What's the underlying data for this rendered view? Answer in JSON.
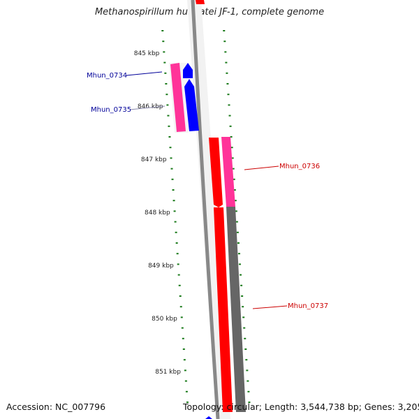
{
  "header": {
    "title": "Methanospirillum hungatei JF-1, complete genome"
  },
  "footer": {
    "accession": "Accession: NC_007796",
    "summary": "Topology: circular; Length: 3,544,738 bp; Genes: 3,205"
  },
  "colors": {
    "forward_gene": "#ff0000",
    "reverse_gene": "#0000ff",
    "forward_cds": "#ff3399",
    "gc_track": "#666666",
    "backbone": "#888888",
    "tick": "#1a7a1a",
    "label_forward": "#cc0000",
    "label_reverse": "#000099"
  },
  "ticks": [
    {
      "label": "845 kbp"
    },
    {
      "label": "846 kbp"
    },
    {
      "label": "847 kbp"
    },
    {
      "label": "848 kbp"
    },
    {
      "label": "849 kbp"
    },
    {
      "label": "850 kbp"
    },
    {
      "label": "851 kbp"
    }
  ],
  "genes": [
    {
      "label": "Mhun_0734",
      "strand": "reverse"
    },
    {
      "label": "Mhun_0735",
      "strand": "reverse"
    },
    {
      "label": "Mhun_0736",
      "strand": "forward"
    },
    {
      "label": "Mhun_0737",
      "strand": "forward"
    }
  ]
}
